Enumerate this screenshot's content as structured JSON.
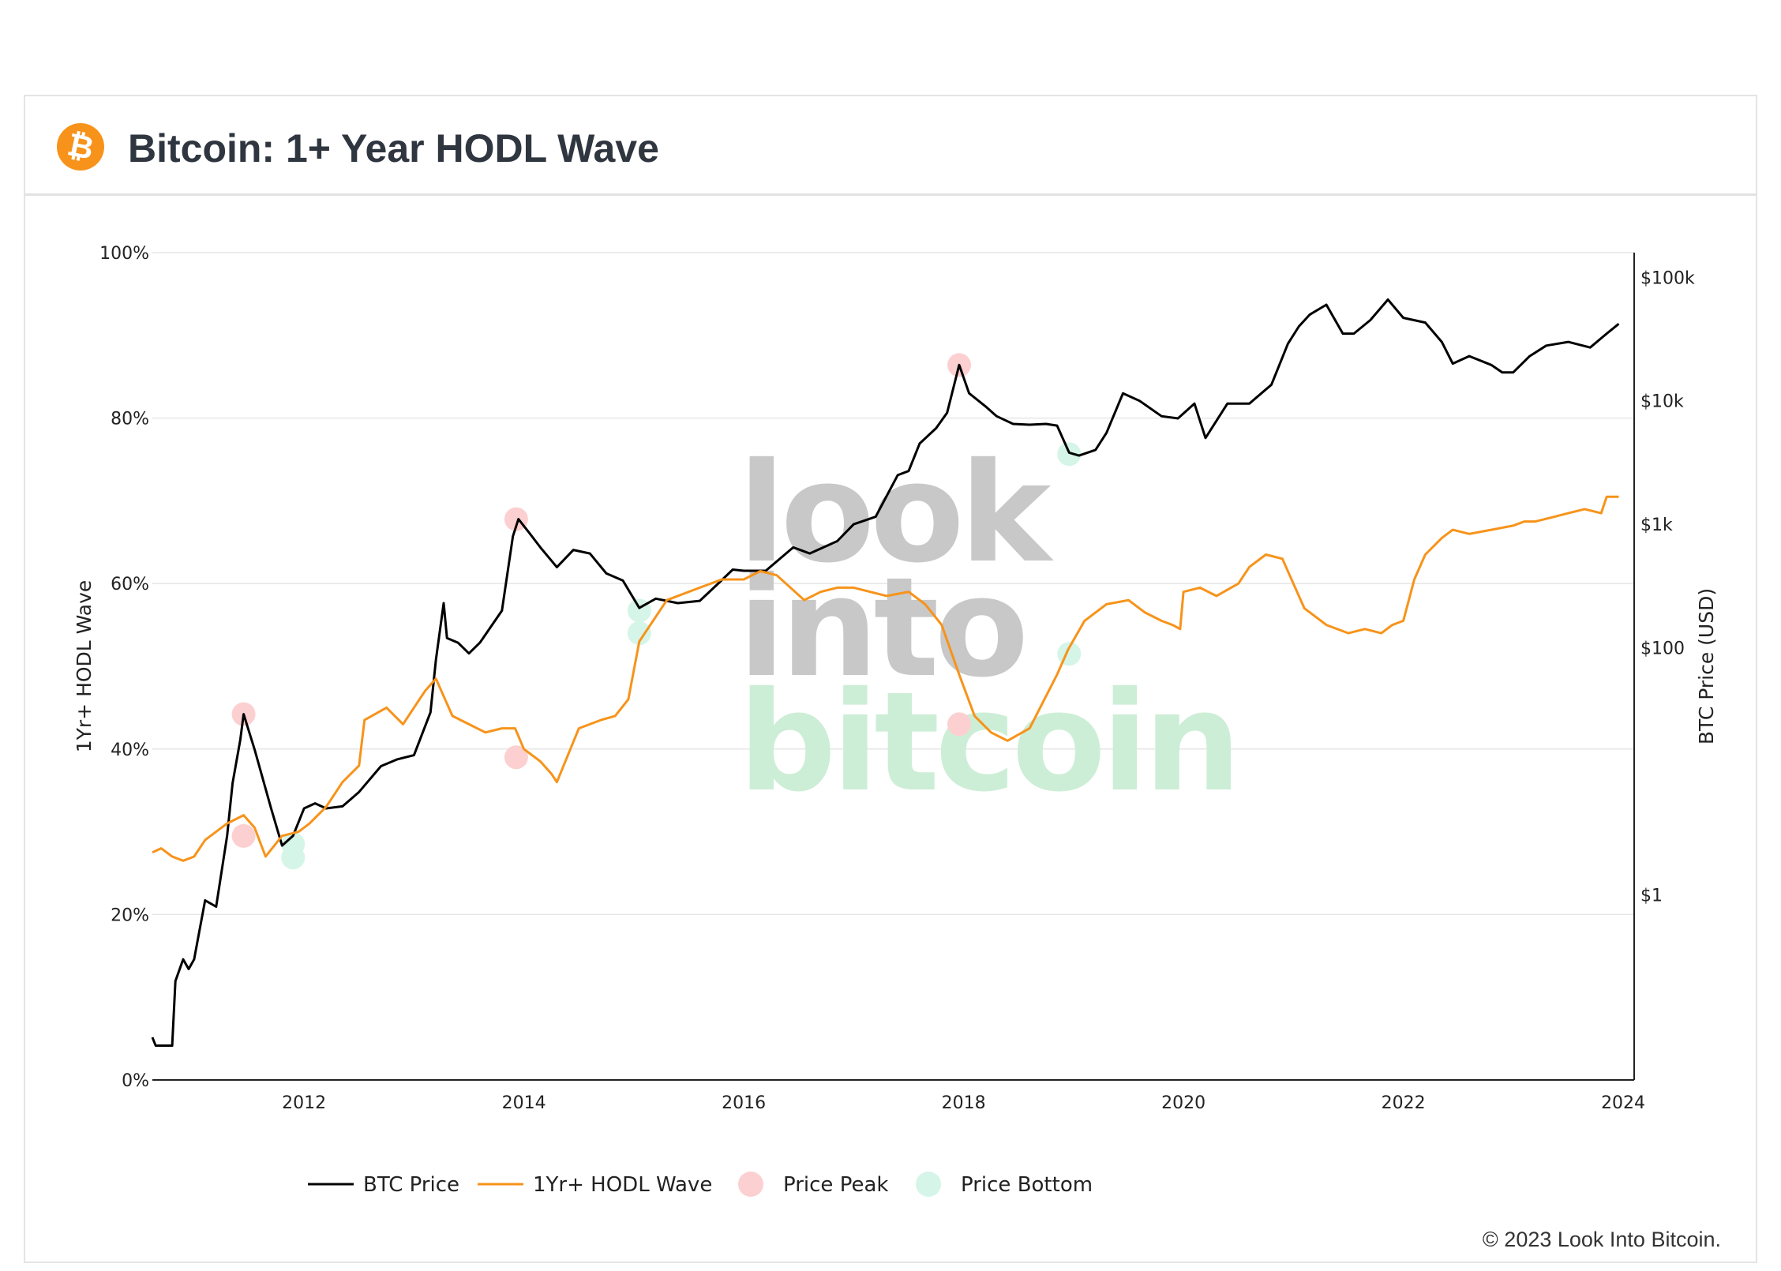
{
  "header": {
    "title": "Bitcoin: 1+ Year HODL Wave",
    "logo_icon": "bitcoin-logo-icon",
    "logo_glyph": "₿"
  },
  "watermark": {
    "line1": "look",
    "line2": "into",
    "line3": "bitcoin"
  },
  "footer": {
    "copyright": "© 2023 Look Into Bitcoin."
  },
  "colors": {
    "btc_price": "#000000",
    "hodl_wave": "#f7931a",
    "peak": "#fcd0d0",
    "bottom": "#d5f5e8",
    "grid": "#e6e6e6",
    "watermark_gray": "#c8c8c8",
    "watermark_green": "#cdeed6"
  },
  "chart_data": {
    "type": "line",
    "title": "Bitcoin: 1+ Year HODL Wave",
    "xlabel": "",
    "ylabel": "1Yr+ HODL Wave",
    "y2label": "BTC Price (USD)",
    "xlim": [
      2010.62,
      2024.1
    ],
    "ylim": [
      0,
      100
    ],
    "y2lim_log10": [
      -1.5,
      5.2
    ],
    "x_ticks": [
      "2012",
      "2014",
      "2016",
      "2018",
      "2020",
      "2022",
      "2024"
    ],
    "x_tick_values": [
      2012,
      2014,
      2016,
      2018,
      2020,
      2022,
      2024
    ],
    "y_ticks": [
      "0%",
      "20%",
      "40%",
      "60%",
      "80%",
      "100%"
    ],
    "y_tick_values": [
      0,
      20,
      40,
      60,
      80,
      100
    ],
    "y2_ticks": [
      "$1",
      "$100",
      "$1k",
      "$10k",
      "$100k"
    ],
    "y2_tick_values": [
      1,
      100,
      1000,
      10000,
      100000
    ],
    "series": [
      {
        "name": "BTC Price",
        "axis": "y2",
        "color": "#000000",
        "x": [
          2010.62,
          2010.65,
          2010.8,
          2010.83,
          2010.9,
          2010.95,
          2011.0,
          2011.1,
          2011.2,
          2011.3,
          2011.35,
          2011.42,
          2011.45,
          2011.55,
          2011.7,
          2011.8,
          2011.9,
          2012.0,
          2012.1,
          2012.2,
          2012.35,
          2012.5,
          2012.7,
          2012.85,
          2013.0,
          2013.15,
          2013.2,
          2013.27,
          2013.3,
          2013.4,
          2013.5,
          2013.6,
          2013.8,
          2013.9,
          2013.95,
          2014.05,
          2014.15,
          2014.3,
          2014.45,
          2014.6,
          2014.75,
          2014.9,
          2015.05,
          2015.2,
          2015.4,
          2015.6,
          2015.75,
          2015.9,
          2016.0,
          2016.2,
          2016.45,
          2016.6,
          2016.85,
          2017.0,
          2017.2,
          2017.4,
          2017.5,
          2017.6,
          2017.75,
          2017.85,
          2017.96,
          2018.05,
          2018.2,
          2018.3,
          2018.45,
          2018.6,
          2018.75,
          2018.85,
          2018.96,
          2019.05,
          2019.2,
          2019.3,
          2019.45,
          2019.6,
          2019.8,
          2019.95,
          2020.1,
          2020.2,
          2020.4,
          2020.6,
          2020.8,
          2020.95,
          2021.05,
          2021.15,
          2021.3,
          2021.45,
          2021.55,
          2021.7,
          2021.86,
          2022.0,
          2022.2,
          2022.35,
          2022.45,
          2022.6,
          2022.8,
          2022.9,
          2023.0,
          2023.15,
          2023.3,
          2023.5,
          2023.7,
          2023.85,
          2023.96
        ],
        "y": [
          0.07,
          0.06,
          0.06,
          0.2,
          0.3,
          0.25,
          0.3,
          0.9,
          0.8,
          3.0,
          8.0,
          18.0,
          29.0,
          15.0,
          5.0,
          2.5,
          3.0,
          5.0,
          5.5,
          5.0,
          5.2,
          6.8,
          11.0,
          12.5,
          13.5,
          30.0,
          80.0,
          230.0,
          120.0,
          110.0,
          90.0,
          110.0,
          200.0,
          800.0,
          1100.0,
          850.0,
          650.0,
          450.0,
          620.0,
          580.0,
          400.0,
          350.0,
          210.0,
          250.0,
          230.0,
          240.0,
          320.0,
          430.0,
          420.0,
          420.0,
          650.0,
          580.0,
          730.0,
          1000.0,
          1150.0,
          2500.0,
          2700.0,
          4500.0,
          6000.0,
          8000.0,
          19500.0,
          11500.0,
          9000.0,
          7500.0,
          6500.0,
          6400.0,
          6500.0,
          6300.0,
          3800.0,
          3600.0,
          4000.0,
          5500.0,
          11500.0,
          10000.0,
          7500.0,
          7200.0,
          9500.0,
          5000.0,
          9500.0,
          9500.0,
          13500.0,
          29000.0,
          40000.0,
          50000.0,
          60000.0,
          35000.0,
          35000.0,
          45000.0,
          66000.0,
          47000.0,
          43000.0,
          30000.0,
          20000.0,
          23000.0,
          19500.0,
          17000.0,
          17000.0,
          23000.0,
          28000.0,
          30000.0,
          27000.0,
          35000.0,
          42000.0
        ]
      },
      {
        "name": "1Yr+ HODL Wave",
        "axis": "y",
        "color": "#f7931a",
        "x": [
          2010.62,
          2010.7,
          2010.8,
          2010.9,
          2011.0,
          2011.1,
          2011.3,
          2011.45,
          2011.55,
          2011.65,
          2011.8,
          2011.95,
          2012.05,
          2012.2,
          2012.35,
          2012.5,
          2012.55,
          2012.75,
          2012.9,
          2013.1,
          2013.2,
          2013.35,
          2013.5,
          2013.65,
          2013.8,
          2013.92,
          2014.0,
          2014.15,
          2014.25,
          2014.3,
          2014.5,
          2014.7,
          2014.83,
          2014.95,
          2015.05,
          2015.3,
          2015.6,
          2015.8,
          2016.0,
          2016.15,
          2016.3,
          2016.55,
          2016.7,
          2016.85,
          2017.0,
          2017.3,
          2017.5,
          2017.65,
          2017.8,
          2017.96,
          2018.1,
          2018.25,
          2018.4,
          2018.6,
          2018.85,
          2018.95,
          2019.1,
          2019.3,
          2019.5,
          2019.65,
          2019.8,
          2019.9,
          2019.97,
          2020.0,
          2020.15,
          2020.3,
          2020.5,
          2020.6,
          2020.75,
          2020.9,
          2021.0,
          2021.1,
          2021.3,
          2021.5,
          2021.65,
          2021.8,
          2021.9,
          2022.0,
          2022.1,
          2022.2,
          2022.35,
          2022.45,
          2022.6,
          2022.8,
          2023.0,
          2023.1,
          2023.2,
          2023.35,
          2023.5,
          2023.65,
          2023.8,
          2023.85,
          2023.96
        ],
        "y": [
          27.5,
          28.0,
          27.0,
          26.5,
          27.0,
          29.0,
          31.0,
          32.0,
          30.5,
          27.0,
          29.5,
          30.0,
          31.0,
          33.0,
          36.0,
          38.0,
          43.5,
          45.0,
          43.0,
          47.0,
          48.5,
          44.0,
          43.0,
          42.0,
          42.5,
          42.5,
          40.0,
          38.5,
          37.0,
          36.0,
          42.5,
          43.5,
          44.0,
          46.0,
          53.0,
          58.0,
          59.5,
          60.5,
          60.5,
          61.5,
          61.0,
          58.0,
          59.0,
          59.5,
          59.5,
          58.5,
          59.0,
          57.5,
          55.0,
          49.0,
          44.0,
          42.0,
          41.0,
          42.5,
          49.0,
          52.0,
          55.5,
          57.5,
          58.0,
          56.5,
          55.5,
          55.0,
          54.5,
          59.0,
          59.5,
          58.5,
          60.0,
          62.0,
          63.5,
          63.0,
          60.0,
          57.0,
          55.0,
          54.0,
          54.5,
          54.0,
          55.0,
          55.5,
          60.5,
          63.5,
          65.5,
          66.5,
          66.0,
          66.5,
          67.0,
          67.5,
          67.5,
          68.0,
          68.5,
          69.0,
          68.5,
          70.5,
          70.5
        ]
      }
    ],
    "markers": {
      "price_peak": {
        "name": "Price Peak",
        "color": "#fcd0d0",
        "points": [
          {
            "x": 2011.45,
            "axis": "y2",
            "value": 29.0
          },
          {
            "x": 2011.45,
            "axis": "y",
            "value": 29.5
          },
          {
            "x": 2013.93,
            "axis": "y2",
            "value": 1100.0
          },
          {
            "x": 2013.93,
            "axis": "y",
            "value": 39.0
          },
          {
            "x": 2017.96,
            "axis": "y2",
            "value": 19500.0
          },
          {
            "x": 2017.96,
            "axis": "y",
            "value": 43.0
          }
        ]
      },
      "price_bottom": {
        "name": "Price Bottom",
        "color": "#d5f5e8",
        "points": [
          {
            "x": 2011.9,
            "axis": "y2",
            "value": 2.0
          },
          {
            "x": 2011.9,
            "axis": "y",
            "value": 28.5
          },
          {
            "x": 2015.05,
            "axis": "y2",
            "value": 200.0
          },
          {
            "x": 2015.05,
            "axis": "y",
            "value": 54.0
          },
          {
            "x": 2018.96,
            "axis": "y2",
            "value": 3700.0
          },
          {
            "x": 2018.96,
            "axis": "y",
            "value": 51.5
          }
        ]
      }
    },
    "legend": [
      "BTC Price",
      "1Yr+ HODL Wave",
      "Price Peak",
      "Price Bottom"
    ],
    "legend_position": "bottom-center",
    "grid": true
  }
}
